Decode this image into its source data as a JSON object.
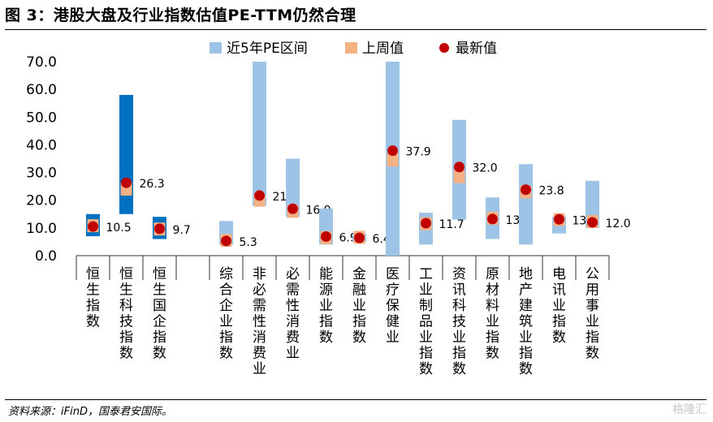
{
  "header": {
    "title": "图 3：港股大盘及行业指数估值PE-TTM仍然合理"
  },
  "footer": {
    "source": "资料来源：iFinD，国泰君安国际。",
    "watermark": "格隆汇"
  },
  "chart_data": {
    "type": "bar",
    "ylim": [
      0,
      70
    ],
    "yticks": [
      "0.0",
      "10.0",
      "20.0",
      "30.0",
      "40.0",
      "50.0",
      "60.0",
      "70.0"
    ],
    "legend": [
      {
        "name": "近5年PE区间",
        "color": "#9DC3E6"
      },
      {
        "name": "上周值",
        "color": "#F4B183"
      },
      {
        "name": "最新值",
        "color": "#C00000"
      }
    ],
    "legend_position": "top",
    "categories": [
      {
        "name": "恒生指数",
        "low": 7,
        "high": 15,
        "last_week": 10.8,
        "latest": 10.5,
        "latest_label": "10.5",
        "color": "#0070C0"
      },
      {
        "name": "恒生科技指数",
        "low": 15,
        "high": 58,
        "last_week": 24,
        "latest": 26.3,
        "latest_label": "26.3",
        "color": "#0070C0"
      },
      {
        "name": "恒生国企指数",
        "low": 6,
        "high": 14,
        "last_week": 9.6,
        "latest": 9.7,
        "latest_label": "9.7",
        "color": "#0070C0"
      },
      {
        "name": "",
        "low": null,
        "high": null,
        "last_week": null,
        "latest": null,
        "latest_label": "",
        "color": ""
      },
      {
        "name": "综合企业指数",
        "low": 4,
        "high": 12.5,
        "last_week": 5.5,
        "latest": 5.3,
        "latest_label": "5.3",
        "color": "#9DC3E6"
      },
      {
        "name": "非必需性消费业",
        "low": 18,
        "high": 70,
        "last_week": 20,
        "latest": 21.7,
        "latest_label": "21.7",
        "color": "#9DC3E6"
      },
      {
        "name": "必需性消费业",
        "low": 14,
        "high": 35,
        "last_week": 16,
        "latest": 16.9,
        "latest_label": "16.9",
        "color": "#9DC3E6"
      },
      {
        "name": "能源业指数",
        "low": 4,
        "high": 17,
        "last_week": 6.5,
        "latest": 6.9,
        "latest_label": "6.9",
        "color": "#9DC3E6"
      },
      {
        "name": "金融业指数",
        "low": 5,
        "high": 8,
        "last_week": 6.6,
        "latest": 6.4,
        "latest_label": "6.4",
        "color": "#9DC3E6"
      },
      {
        "name": "医疗保健业",
        "low": 0,
        "high": 70,
        "last_week": 34.5,
        "latest": 37.9,
        "latest_label": "37.9",
        "color": "#9DC3E6"
      },
      {
        "name": "工业制品业指数",
        "low": 4,
        "high": 15.5,
        "last_week": 11.5,
        "latest": 11.7,
        "latest_label": "11.7",
        "color": "#9DC3E6"
      },
      {
        "name": "资讯科技业指数",
        "low": 13,
        "high": 49,
        "last_week": 28.5,
        "latest": 32.0,
        "latest_label": "32.0",
        "color": "#9DC3E6"
      },
      {
        "name": "原材料业指数",
        "low": 6,
        "high": 21,
        "last_week": 13.5,
        "latest": 13.2,
        "latest_label": "13.2",
        "color": "#9DC3E6"
      },
      {
        "name": "地产建筑业指数",
        "low": 4,
        "high": 33,
        "last_week": 23,
        "latest": 23.8,
        "latest_label": "23.8",
        "color": "#9DC3E6"
      },
      {
        "name": "电讯业指数",
        "low": 8,
        "high": 14,
        "last_week": 13,
        "latest": 13.1,
        "latest_label": "13.1",
        "color": "#9DC3E6"
      },
      {
        "name": "公用事业指数",
        "low": 10,
        "high": 27,
        "last_week": 12.3,
        "latest": 12.0,
        "latest_label": "12.0",
        "color": "#9DC3E6"
      }
    ]
  }
}
